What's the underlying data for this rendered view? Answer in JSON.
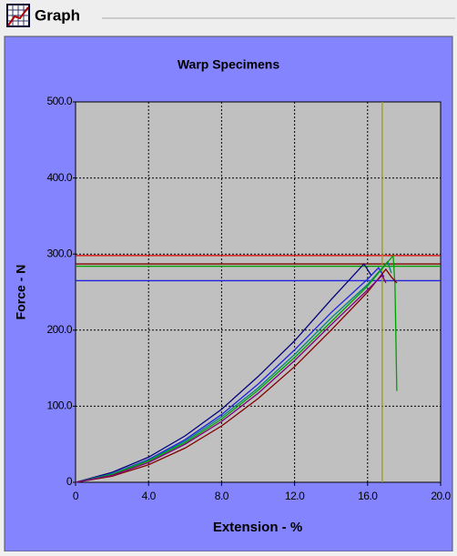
{
  "window": {
    "title": "Graph"
  },
  "chart_data": {
    "type": "line",
    "title": "Warp Specimens",
    "x_label": "Extension - %",
    "y_label": "Force - N",
    "xlim": [
      0,
      20
    ],
    "ylim": [
      0,
      500
    ],
    "xticks": [
      {
        "value": 0,
        "label": "0"
      },
      {
        "value": 4,
        "label": "4.0"
      },
      {
        "value": 8,
        "label": "8.0"
      },
      {
        "value": 12,
        "label": "12.0"
      },
      {
        "value": 16,
        "label": "16.0"
      },
      {
        "value": 20,
        "label": "20.0"
      }
    ],
    "yticks": [
      {
        "value": 0,
        "label": "0"
      },
      {
        "value": 100,
        "label": "100.0"
      },
      {
        "value": 200,
        "label": "200.0"
      },
      {
        "value": 300,
        "label": "300.0"
      },
      {
        "value": 400,
        "label": "400.0"
      },
      {
        "value": 500,
        "label": "500.0"
      }
    ],
    "grid": true,
    "series": [
      {
        "color": "#000080",
        "x": [
          0,
          2,
          4,
          6,
          8,
          10,
          12,
          14,
          15.8,
          16.2
        ],
        "values": [
          0,
          13,
          33,
          61,
          96,
          139,
          186,
          240,
          287,
          272
        ]
      },
      {
        "color": "#2020e0",
        "x": [
          0,
          2,
          4,
          6,
          8,
          10,
          12,
          14,
          16,
          16.6,
          16.9
        ],
        "values": [
          0,
          11,
          30,
          56,
          89,
          129,
          174,
          223,
          267,
          282,
          270
        ]
      },
      {
        "color": "#008080",
        "x": [
          0,
          2,
          4,
          6,
          8,
          10,
          12,
          14,
          16,
          17.1,
          17.3
        ],
        "values": [
          0,
          11,
          29,
          54,
          86,
          124,
          168,
          216,
          260,
          290,
          275
        ]
      },
      {
        "color": "#00a000",
        "x": [
          0,
          2,
          4,
          6,
          8,
          10,
          12,
          14,
          16,
          17.4,
          17.5,
          17.6
        ],
        "values": [
          0,
          10,
          28,
          52,
          83,
          121,
          164,
          211,
          258,
          298,
          260,
          120
        ]
      },
      {
        "color": "#800000",
        "x": [
          0,
          2,
          4,
          6,
          8,
          10,
          12,
          14,
          16,
          17,
          17.3,
          17.6
        ],
        "values": [
          0,
          8,
          23,
          45,
          74,
          110,
          152,
          200,
          250,
          280,
          270,
          262
        ]
      },
      {
        "color": "#800080",
        "x": [
          0,
          2,
          4,
          6,
          8,
          10,
          12,
          14,
          16,
          16.8,
          17
        ],
        "values": [
          0,
          9,
          26,
          50,
          80,
          117,
          160,
          207,
          253,
          272,
          262
        ]
      }
    ],
    "hlines": [
      {
        "value": 298,
        "color": "#e00000"
      },
      {
        "value": 287,
        "color": "#800000"
      },
      {
        "value": 284,
        "color": "#00a000"
      },
      {
        "value": 265,
        "color": "#2020e0"
      }
    ],
    "vlines": [
      {
        "value": 16.8,
        "color": "#a0a000"
      }
    ]
  }
}
